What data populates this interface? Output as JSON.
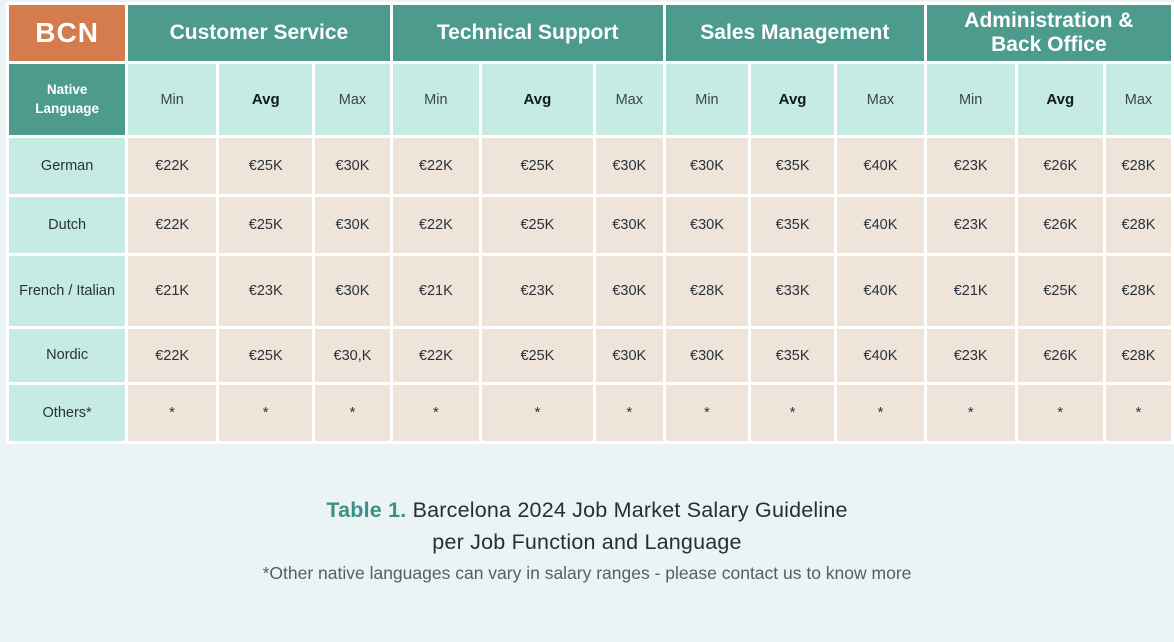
{
  "chart_data": {
    "type": "table",
    "title": "Table 1. Barcelona 2024 Job Market Salary Guideline per Job Function and Language",
    "corner_label": "BCN",
    "row_label_header": "Native Language",
    "column_groups": [
      "Customer Service",
      "Technical Support",
      "Sales Management",
      "Administration & Back Office"
    ],
    "subcolumns": [
      "Min",
      "Avg",
      "Max"
    ],
    "rows": [
      {
        "language": "German",
        "values": [
          "€22K",
          "€25K",
          "€30K",
          "€22K",
          "€25K",
          "€30K",
          "€30K",
          "€35K",
          "€40K",
          "€23K",
          "€26K",
          "€28K"
        ]
      },
      {
        "language": "Dutch",
        "values": [
          "€22K",
          "€25K",
          "€30K",
          "€22K",
          "€25K",
          "€30K",
          "€30K",
          "€35K",
          "€40K",
          "€23K",
          "€26K",
          "€28K"
        ]
      },
      {
        "language": "French / Italian",
        "values": [
          "€21K",
          "€23K",
          "€30K",
          "€21K",
          "€23K",
          "€30K",
          "€28K",
          "€33K",
          "€40K",
          "€21K",
          "€25K",
          "€28K"
        ]
      },
      {
        "language": "Nordic",
        "values": [
          "€22K",
          "€25K",
          "€30,K",
          "€22K",
          "€25K",
          "€30K",
          "€30K",
          "€35K",
          "€40K",
          "€23K",
          "€26K",
          "€28K"
        ]
      },
      {
        "language": "Others*",
        "values": [
          "*",
          "*",
          "*",
          "*",
          "*",
          "*",
          "*",
          "*",
          "*",
          "*",
          "*",
          "*"
        ]
      }
    ]
  },
  "caption": {
    "label": "Table 1.",
    "title_line1": "Barcelona 2024 Job Market Salary Guideline",
    "title_line2": "per Job Function and Language",
    "footnote": "*Other native languages can vary in salary ranges - please contact us to know more"
  },
  "colors": {
    "orange_corner": "#D57C4F",
    "teal_header": "#4C9B8C",
    "mint_subheader": "#C6EBE2",
    "beige_cell": "#EFE4DA",
    "page_background": "#ECF3F4",
    "caption_accent": "#3B9185",
    "caption_text": "#232F3B",
    "footnote_text": "#535E66"
  }
}
